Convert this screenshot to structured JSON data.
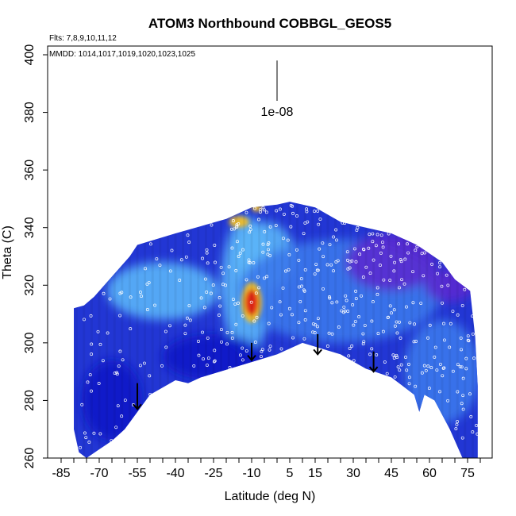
{
  "chart_data": {
    "type": "heatmap",
    "title": "ATOM3 Northbound COBBGL_GEOS5",
    "flights_text": "Flts: 7,8,9,10,11,12",
    "dates_text": "MMDD: 1014,1017,1019,1020,1023,1025",
    "xlabel": "Latitude (deg N)",
    "ylabel": "Theta (C)",
    "xlim": [
      -85,
      80
    ],
    "ylim": [
      260,
      400
    ],
    "x_ticks": [
      -85,
      -70,
      -55,
      -40,
      -25,
      -10,
      5,
      15,
      30,
      45,
      60,
      75
    ],
    "y_ticks": [
      260,
      280,
      300,
      320,
      340,
      360,
      380,
      400
    ],
    "scale_label": "1e-08",
    "scale_bar": {
      "x": 0,
      "y_top": 398,
      "y_bottom": 384
    },
    "colors": {
      "background": "#2236d4",
      "deep": "#0a14c8",
      "mid": "#3a78ec",
      "light": "#5ab4f8",
      "purple": "#5a2ad0",
      "hot": "#e01818",
      "warm": "#f8c020"
    },
    "domain_outline": [
      [
        -80,
        312
      ],
      [
        -76,
        313
      ],
      [
        -72,
        316
      ],
      [
        -65,
        323
      ],
      [
        -58,
        330
      ],
      [
        -55,
        334
      ],
      [
        -40,
        338
      ],
      [
        -20,
        343
      ],
      [
        -10,
        347
      ],
      [
        0,
        348
      ],
      [
        5,
        349
      ],
      [
        15,
        347
      ],
      [
        25,
        342
      ],
      [
        35,
        340
      ],
      [
        45,
        338
      ],
      [
        55,
        334
      ],
      [
        65,
        328
      ],
      [
        70,
        322
      ],
      [
        76,
        318
      ],
      [
        78,
        302
      ],
      [
        79,
        285
      ],
      [
        79,
        260
      ],
      [
        73,
        260
      ],
      [
        68,
        270
      ],
      [
        62,
        280
      ],
      [
        58,
        282
      ],
      [
        56,
        276
      ],
      [
        54,
        282
      ],
      [
        45,
        288
      ],
      [
        35,
        291
      ],
      [
        25,
        296
      ],
      [
        10,
        300
      ],
      [
        0,
        296
      ],
      [
        -15,
        292
      ],
      [
        -30,
        288
      ],
      [
        -35,
        286
      ],
      [
        -40,
        287
      ],
      [
        -50,
        282
      ],
      [
        -60,
        270
      ],
      [
        -65,
        266
      ],
      [
        -75,
        260
      ],
      [
        -78,
        262
      ],
      [
        -80,
        270
      ],
      [
        -80,
        312
      ]
    ],
    "features": [
      {
        "kind": "light",
        "lat": -12,
        "theta": 320,
        "rlat": 10,
        "rtheta": 24
      },
      {
        "kind": "light",
        "lat": -5,
        "theta": 330,
        "rlat": 12,
        "rtheta": 12
      },
      {
        "kind": "light",
        "lat": -45,
        "theta": 318,
        "rlat": 22,
        "rtheta": 10
      },
      {
        "kind": "mid",
        "lat": 25,
        "theta": 318,
        "rlat": 40,
        "rtheta": 18
      },
      {
        "kind": "mid",
        "lat": 65,
        "theta": 290,
        "rlat": 15,
        "rtheta": 18
      },
      {
        "kind": "purple",
        "lat": 45,
        "theta": 328,
        "rlat": 18,
        "rtheta": 10
      },
      {
        "kind": "purple",
        "lat": 68,
        "theta": 320,
        "rlat": 10,
        "rtheta": 6
      },
      {
        "kind": "deep",
        "lat": -25,
        "theta": 295,
        "rlat": 20,
        "rtheta": 8
      },
      {
        "kind": "deep",
        "lat": -65,
        "theta": 280,
        "rlat": 12,
        "rtheta": 14
      },
      {
        "kind": "warm",
        "lat": -10,
        "theta": 314,
        "rlat": 4,
        "rtheta": 7
      },
      {
        "kind": "hot",
        "lat": -10,
        "theta": 314,
        "rlat": 2.6,
        "rtheta": 4.5
      },
      {
        "kind": "warm",
        "lat": -15,
        "theta": 342,
        "rlat": 4,
        "rtheta": 2
      },
      {
        "kind": "warm",
        "lat": -8,
        "theta": 347,
        "rlat": 2,
        "rtheta": 1.5
      }
    ],
    "arrows": [
      {
        "lat": -55,
        "theta_top": 286,
        "theta_bottom": 277
      },
      {
        "lat": -10,
        "theta_top": 300,
        "theta_bottom": 294
      },
      {
        "lat": 16,
        "theta_top": 303,
        "theta_bottom": 296
      },
      {
        "lat": 38,
        "theta_top": 297,
        "theta_bottom": 290
      }
    ]
  }
}
